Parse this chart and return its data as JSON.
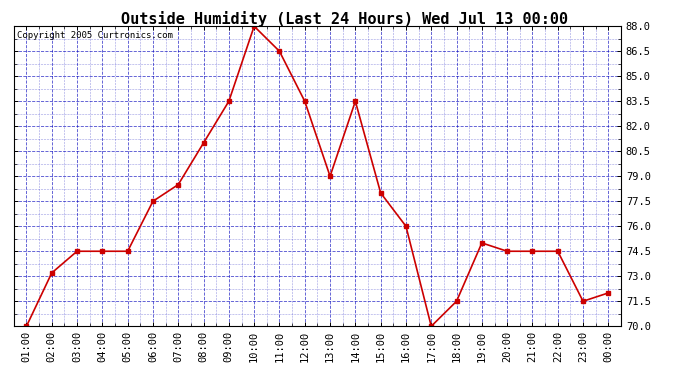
{
  "title": "Outside Humidity (Last 24 Hours) Wed Jul 13 00:00",
  "copyright": "Copyright 2005 Curtronics.com",
  "x_labels": [
    "01:00",
    "02:00",
    "03:00",
    "04:00",
    "05:00",
    "06:00",
    "07:00",
    "08:00",
    "09:00",
    "10:00",
    "11:00",
    "12:00",
    "13:00",
    "14:00",
    "15:00",
    "16:00",
    "17:00",
    "18:00",
    "19:00",
    "20:00",
    "21:00",
    "22:00",
    "23:00",
    "00:00"
  ],
  "y_values": [
    70.0,
    73.2,
    74.5,
    74.5,
    74.5,
    77.5,
    78.5,
    81.0,
    83.5,
    88.0,
    86.5,
    83.5,
    79.0,
    83.5,
    78.0,
    76.0,
    70.0,
    71.5,
    75.0,
    74.5,
    74.5,
    74.5,
    71.5,
    72.0
  ],
  "line_color": "#cc0000",
  "marker": "s",
  "marker_size": 2.5,
  "line_width": 1.2,
  "bg_color": "#ffffff",
  "plot_bg_color": "#ffffff",
  "grid_color": "#0000bb",
  "grid_style": "--",
  "grid_alpha": 0.7,
  "ylim": [
    70.0,
    88.0
  ],
  "yticks": [
    70.0,
    71.5,
    73.0,
    74.5,
    76.0,
    77.5,
    79.0,
    80.5,
    82.0,
    83.5,
    85.0,
    86.5,
    88.0
  ],
  "title_fontsize": 11,
  "tick_fontsize": 7.5,
  "copyright_fontsize": 6.5
}
